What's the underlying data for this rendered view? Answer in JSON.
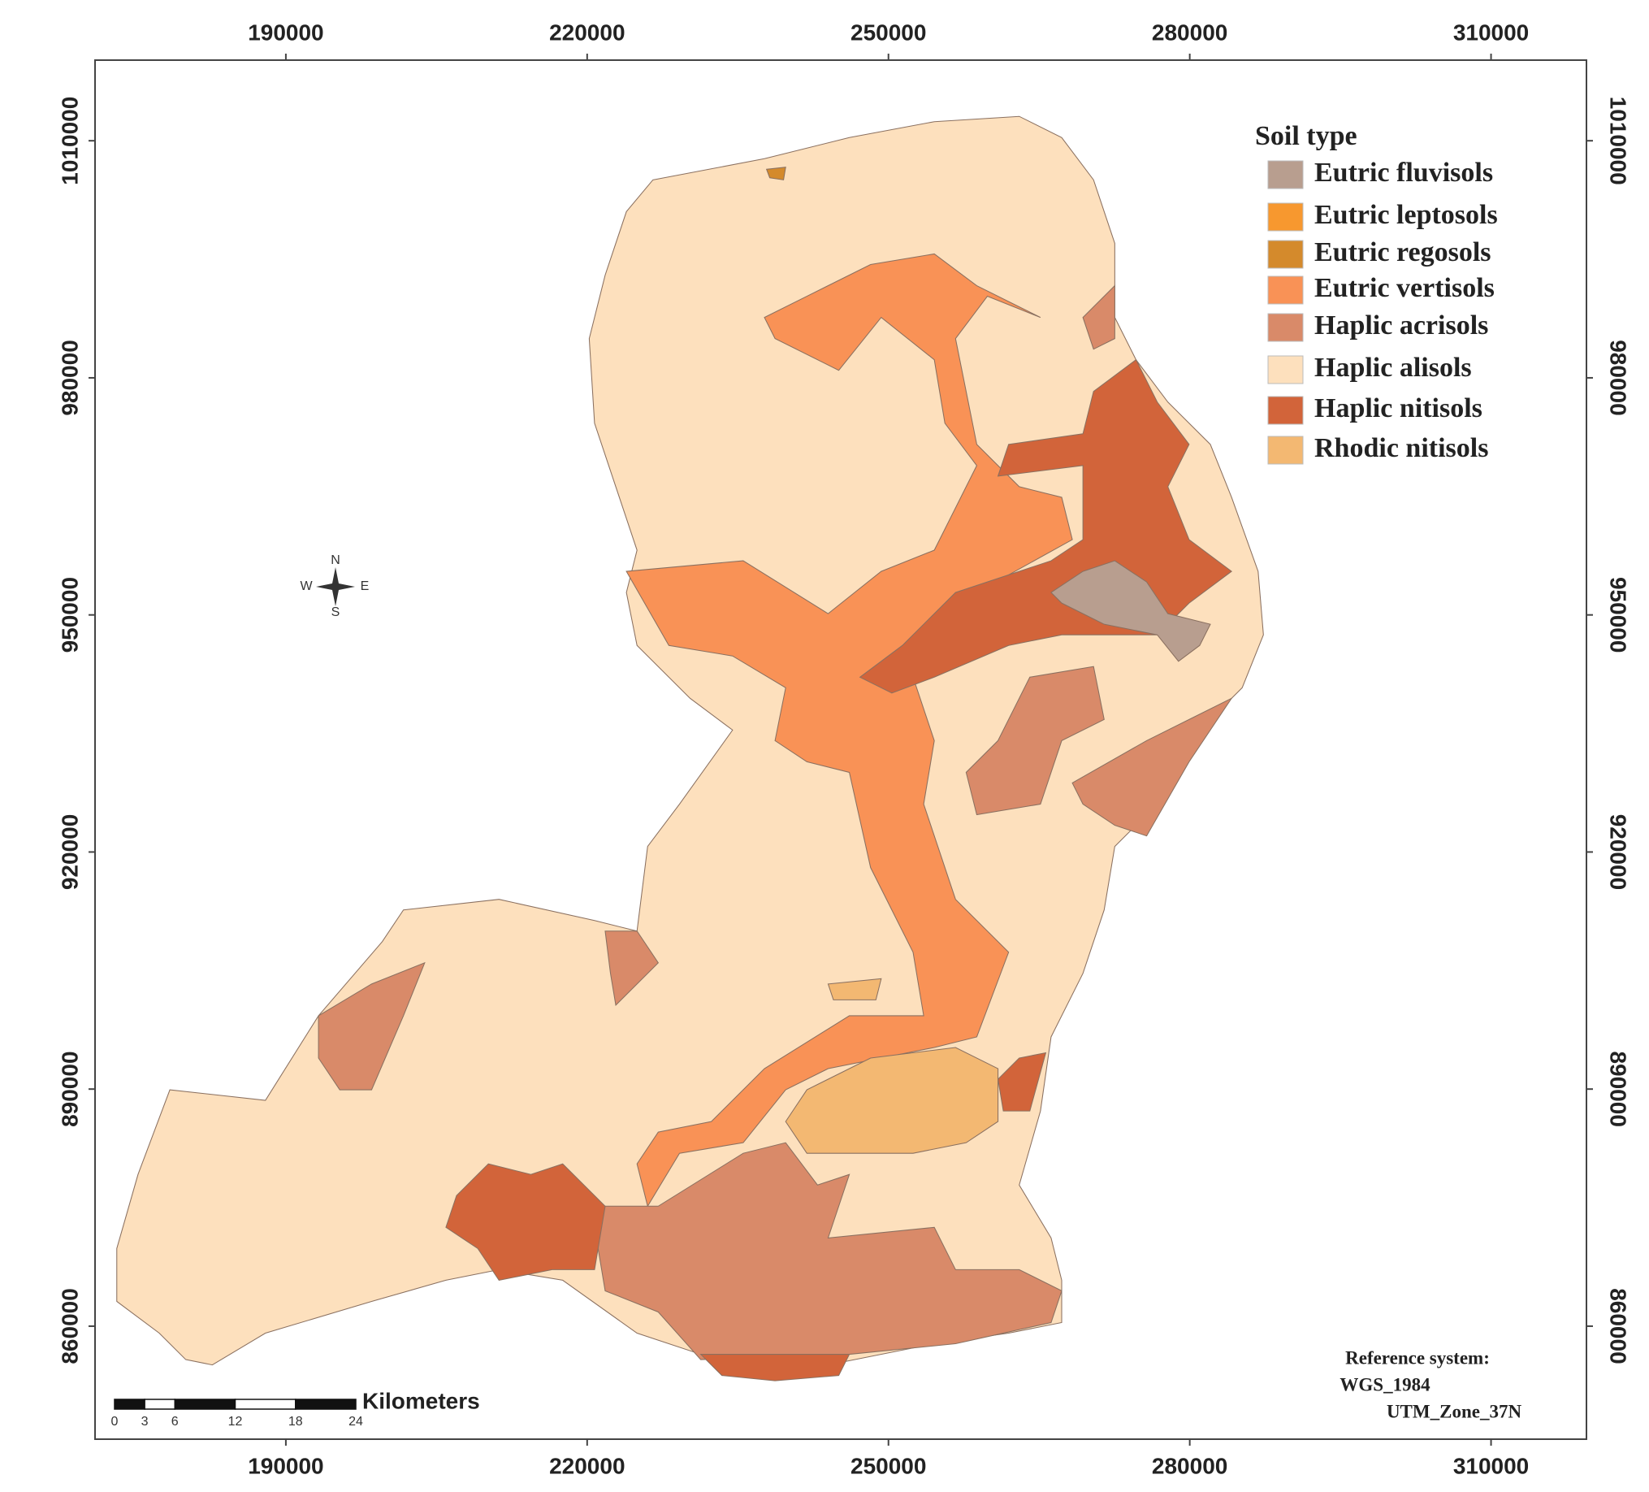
{
  "map": {
    "xlim": [
      171000,
      319500
    ],
    "ylim": [
      845700,
      1020200
    ],
    "xticks": [
      190000,
      220000,
      250000,
      280000,
      310000
    ],
    "yticks": [
      860000,
      890000,
      920000,
      950000,
      980000,
      1010000
    ],
    "legend": {
      "title": "Soil type",
      "items": [
        {
          "name": "Eutric fluvisols",
          "color": "#b89e8f"
        },
        {
          "name": "Eutric leptosols",
          "color": "#f7982f"
        },
        {
          "name": "Eutric regosols",
          "color": "#d48a2c"
        },
        {
          "name": "Eutric vertisols",
          "color": "#f99256"
        },
        {
          "name": "Haplic acrisols",
          "color": "#d98a69"
        },
        {
          "name": "Haplic alisols",
          "color": "#fde0bd"
        },
        {
          "name": "Haplic nitisols",
          "color": "#d2643a"
        },
        {
          "name": "Rhodic nitisols",
          "color": "#f3b872"
        }
      ]
    },
    "scale_bar": {
      "unit": "Kilometers",
      "ticks": [
        0,
        3,
        6,
        12,
        18,
        24
      ]
    },
    "reference": [
      "Reference system:",
      "WGS_1984",
      "UTM_Zone_37N"
    ],
    "compass": {
      "n": "N",
      "e": "E",
      "s": "S",
      "w": "W"
    }
  }
}
